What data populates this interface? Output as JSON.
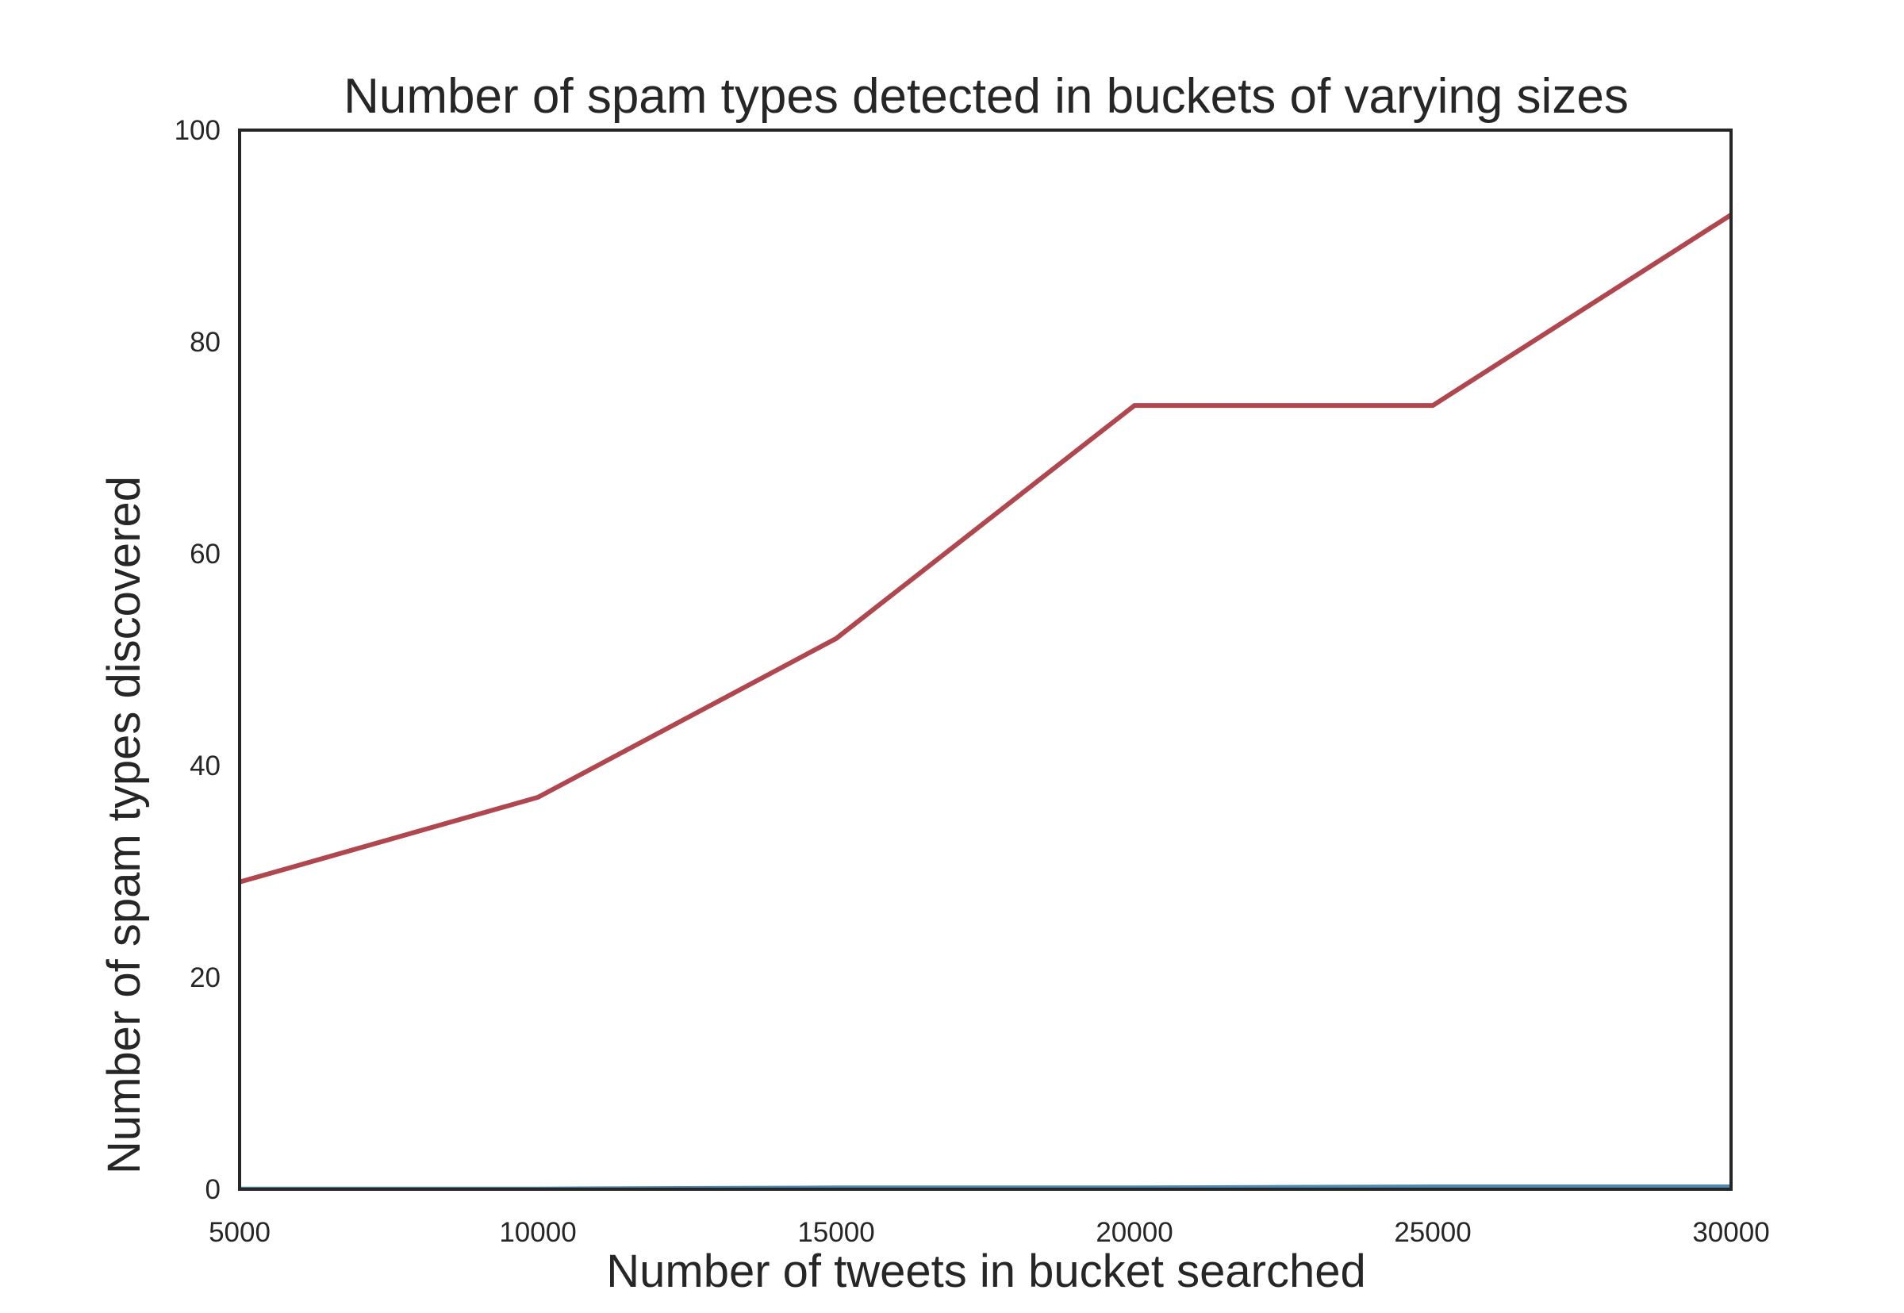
{
  "chart_data": {
    "type": "line",
    "title": "Number of spam types detected in buckets of varying sizes",
    "xlabel": "Number of tweets in bucket searched",
    "ylabel": "Number of spam types discovered",
    "x": [
      5000,
      10000,
      15000,
      20000,
      25000,
      30000
    ],
    "xlim": [
      5000,
      30000
    ],
    "ylim": [
      0,
      100
    ],
    "x_ticks": [
      "5000",
      "10000",
      "15000",
      "20000",
      "25000",
      "30000"
    ],
    "y_ticks": [
      "0",
      "20",
      "40",
      "60",
      "80",
      "100"
    ],
    "grid": false,
    "series": [
      {
        "color": "#b0474f",
        "values": [
          29,
          37,
          52,
          74,
          74,
          92
        ]
      },
      {
        "color": "#4c8bb5",
        "values": [
          0.1,
          0.1,
          0.2,
          0.2,
          0.3,
          0.3
        ]
      }
    ]
  }
}
